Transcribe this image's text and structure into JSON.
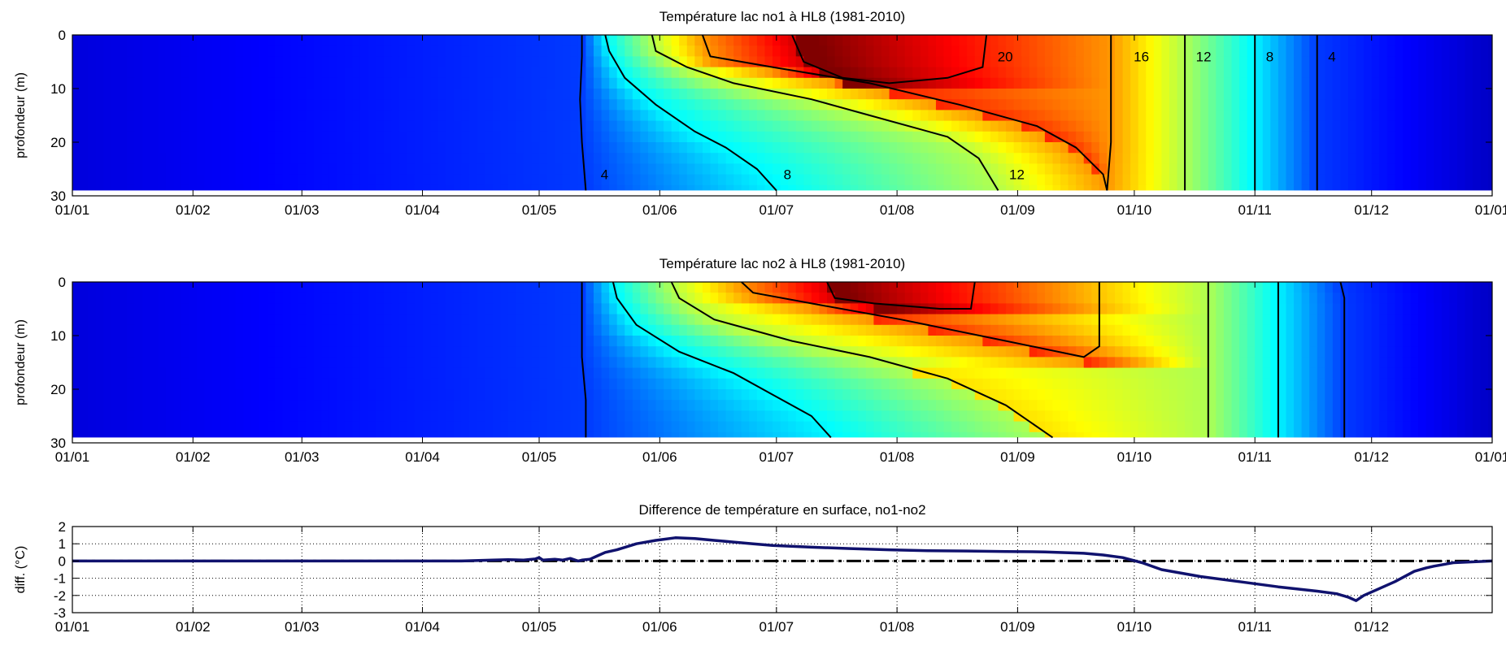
{
  "colors": {
    "cold": "#0000c8",
    "warm": "#800000",
    "difference_line": "#10126e",
    "zero_line": "#000000",
    "contours": "#000000"
  },
  "chart_data": [
    {
      "type": "heatmap",
      "title": "Température lac no1 à HL8 (1981-2010)",
      "xlabel": "",
      "ylabel": "profondeur (m)",
      "x_unit": "day of year",
      "xlim": [
        0,
        365
      ],
      "ylim": [
        30,
        0
      ],
      "x_ticks": [
        0,
        31,
        59,
        90,
        120,
        151,
        181,
        212,
        243,
        273,
        304,
        334,
        365
      ],
      "x_tick_labels": [
        "01/01",
        "01/02",
        "01/03",
        "01/04",
        "01/05",
        "01/06",
        "01/07",
        "01/08",
        "01/09",
        "01/10",
        "01/11",
        "01/12",
        "01/01"
      ],
      "y_ticks": [
        0,
        10,
        20,
        30
      ],
      "y_tick_labels": [
        "0",
        "10",
        "20",
        "30"
      ],
      "max_depth": 29,
      "colormap": "jet",
      "color_range": [
        0,
        22
      ],
      "contours": [
        {
          "level": 4,
          "label": "4",
          "label_at": [
            135,
            26
          ],
          "points": [
            [
              131,
              0
            ],
            [
              131,
              4
            ],
            [
              130.5,
              12
            ],
            [
              131,
              20
            ],
            [
              132,
              29
            ]
          ]
        },
        {
          "level": 4,
          "label": "4",
          "label_at": [
            322,
            4
          ],
          "points": [
            [
              320,
              0
            ],
            [
              320,
              29
            ]
          ]
        },
        {
          "level": 8,
          "label": "8",
          "label_at": [
            182,
            26
          ],
          "points": [
            [
              137,
              0
            ],
            [
              138,
              3
            ],
            [
              142,
              8
            ],
            [
              150,
              13
            ],
            [
              160,
              18
            ],
            [
              168,
              21
            ],
            [
              176,
              25
            ],
            [
              181,
              29
            ]
          ]
        },
        {
          "level": 8,
          "label": "8",
          "label_at": [
            306,
            4
          ],
          "points": [
            [
              304,
              0
            ],
            [
              304,
              29
            ]
          ]
        },
        {
          "level": 12,
          "label": "12",
          "label_at": [
            240,
            26
          ],
          "points": [
            [
              149,
              0
            ],
            [
              150,
              3
            ],
            [
              158,
              6
            ],
            [
              170,
              9
            ],
            [
              190,
              12
            ],
            [
              205,
              15
            ],
            [
              225,
              19
            ],
            [
              233,
              23
            ],
            [
              238,
              29
            ]
          ]
        },
        {
          "level": 12,
          "label": "12",
          "label_at": [
            288,
            4
          ],
          "points": [
            [
              286,
              0
            ],
            [
              286,
              29
            ]
          ]
        },
        {
          "level": 16,
          "label": "16",
          "label_at": [
            272,
            4
          ],
          "points": [
            [
              162,
              0
            ],
            [
              164,
              4
            ],
            [
              180,
              6
            ],
            [
              205,
              9
            ],
            [
              228,
              13
            ],
            [
              248,
              17
            ],
            [
              258,
              21
            ],
            [
              265,
              26
            ],
            [
              266,
              29
            ]
          ]
        },
        {
          "level": 16,
          "label": "",
          "label_at": null,
          "points": [
            [
              266,
              29
            ],
            [
              267,
              20
            ],
            [
              267,
              10
            ],
            [
              267,
              0
            ]
          ]
        },
        {
          "level": 20,
          "label": "20",
          "label_at": [
            237,
            4
          ],
          "points": [
            [
              185,
              0
            ],
            [
              188,
              5
            ],
            [
              198,
              8
            ],
            [
              210,
              9
            ],
            [
              225,
              8
            ],
            [
              234,
              6
            ],
            [
              235,
              0
            ]
          ]
        }
      ]
    },
    {
      "type": "heatmap",
      "title": "Température lac no2 à HL8 (1981-2010)",
      "xlabel": "",
      "ylabel": "profondeur (m)",
      "x_unit": "day of year",
      "xlim": [
        0,
        365
      ],
      "ylim": [
        30,
        0
      ],
      "x_ticks": [
        0,
        31,
        59,
        90,
        120,
        151,
        181,
        212,
        243,
        273,
        304,
        334,
        365
      ],
      "x_tick_labels": [
        "01/01",
        "01/02",
        "01/03",
        "01/04",
        "01/05",
        "01/06",
        "01/07",
        "01/08",
        "01/09",
        "01/10",
        "01/11",
        "01/12",
        "01/01"
      ],
      "y_ticks": [
        0,
        10,
        20,
        30
      ],
      "y_tick_labels": [
        "0",
        "10",
        "20",
        "30"
      ],
      "max_depth": 29,
      "colormap": "jet",
      "color_range": [
        0,
        22
      ],
      "contours": [
        {
          "level": 4,
          "label": "",
          "label_at": null,
          "points": [
            [
              131,
              0
            ],
            [
              131,
              4
            ],
            [
              131,
              14
            ],
            [
              132,
              22
            ],
            [
              132,
              29
            ]
          ]
        },
        {
          "level": 4,
          "label": "",
          "label_at": null,
          "points": [
            [
              326,
              0
            ],
            [
              327,
              3
            ],
            [
              327,
              29
            ]
          ]
        },
        {
          "level": 8,
          "label": "",
          "label_at": null,
          "points": [
            [
              139,
              0
            ],
            [
              140,
              3
            ],
            [
              145,
              8
            ],
            [
              156,
              13
            ],
            [
              170,
              17
            ],
            [
              180,
              21
            ],
            [
              190,
              25
            ],
            [
              195,
              29
            ]
          ]
        },
        {
          "level": 8,
          "label": "",
          "label_at": null,
          "points": [
            [
              310,
              0
            ],
            [
              310,
              29
            ]
          ]
        },
        {
          "level": 12,
          "label": "",
          "label_at": null,
          "points": [
            [
              154,
              0
            ],
            [
              156,
              3
            ],
            [
              165,
              7
            ],
            [
              185,
              11
            ],
            [
              205,
              14
            ],
            [
              225,
              18
            ],
            [
              240,
              23
            ],
            [
              252,
              29
            ]
          ]
        },
        {
          "level": 12,
          "label": "",
          "label_at": null,
          "points": [
            [
              292,
              0
            ],
            [
              292,
              29
            ]
          ]
        },
        {
          "level": 16,
          "label": "",
          "label_at": null,
          "points": [
            [
              172,
              0
            ],
            [
              175,
              2
            ],
            [
              190,
              4
            ],
            [
              213,
              7
            ],
            [
              240,
              11
            ],
            [
              260,
              14
            ],
            [
              264,
              12
            ],
            [
              264,
              0
            ]
          ]
        },
        {
          "level": 20,
          "label": "",
          "label_at": null,
          "points": [
            [
              194,
              0
            ],
            [
              196,
              3
            ],
            [
              206,
              4
            ],
            [
              223,
              5
            ],
            [
              231,
              5
            ],
            [
              232,
              0
            ]
          ]
        }
      ]
    },
    {
      "type": "line",
      "title": "Difference de température en surface, no1-no2",
      "xlabel": "",
      "ylabel": "diff. (°C)",
      "xlim": [
        0,
        365
      ],
      "ylim": [
        -3,
        2
      ],
      "x_ticks": [
        0,
        31,
        59,
        90,
        120,
        151,
        181,
        212,
        243,
        273,
        304,
        334
      ],
      "x_tick_labels": [
        "01/01",
        "01/02",
        "01/03",
        "01/04",
        "01/05",
        "01/06",
        "01/07",
        "01/08",
        "01/09",
        "01/10",
        "01/11",
        "01/12"
      ],
      "y_ticks": [
        -3,
        -2,
        -1,
        0,
        1,
        2
      ],
      "y_tick_labels": [
        "-3",
        "-2",
        "-1",
        "0",
        "1",
        "2"
      ],
      "grid": true,
      "reference_line": {
        "y": 0,
        "style": "dash-dot"
      },
      "series": [
        {
          "x": [
            0,
            100,
            108,
            112,
            116,
            119,
            120,
            121,
            124,
            126,
            128,
            130,
            131,
            133,
            135,
            137,
            140,
            145,
            150,
            155,
            160,
            165,
            170,
            175,
            180,
            190,
            200,
            210,
            220,
            230,
            240,
            250,
            260,
            265,
            270,
            275,
            280,
            290,
            300,
            310,
            320,
            325,
            328,
            330,
            332,
            336,
            340,
            345,
            348,
            350,
            355,
            365
          ],
          "y": [
            0,
            0,
            0.05,
            0.08,
            0.05,
            0.12,
            0.2,
            0.05,
            0.1,
            0.05,
            0.15,
            0.0,
            0.05,
            0.1,
            0.3,
            0.5,
            0.65,
            1.0,
            1.2,
            1.35,
            1.3,
            1.2,
            1.1,
            1.0,
            0.9,
            0.8,
            0.72,
            0.65,
            0.6,
            0.58,
            0.55,
            0.53,
            0.45,
            0.35,
            0.2,
            -0.1,
            -0.5,
            -0.9,
            -1.2,
            -1.5,
            -1.75,
            -1.9,
            -2.1,
            -2.3,
            -2.0,
            -1.6,
            -1.2,
            -0.6,
            -0.4,
            -0.3,
            -0.1,
            0
          ]
        }
      ]
    }
  ]
}
